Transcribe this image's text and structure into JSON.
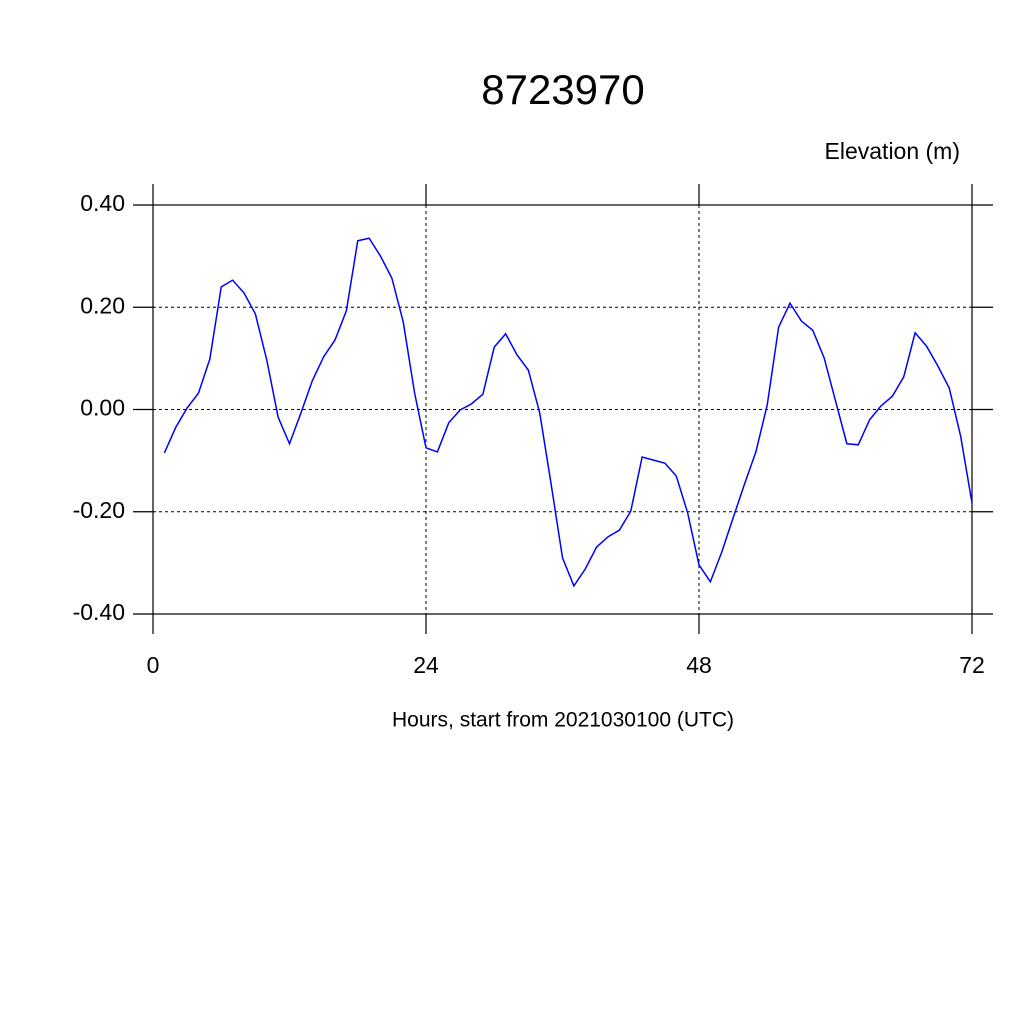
{
  "chart_data": {
    "type": "line",
    "title": "8723970",
    "y_label": "Elevation (m)",
    "x_label": "Hours, start from 2021030100 (UTC)",
    "x": [
      1,
      2,
      3,
      4,
      5,
      6,
      7,
      8,
      9,
      10,
      11,
      12,
      13,
      14,
      15,
      16,
      17,
      18,
      19,
      20,
      21,
      22,
      23,
      24,
      25,
      26,
      27,
      28,
      29,
      30,
      31,
      32,
      33,
      34,
      35,
      36,
      37,
      38,
      39,
      40,
      41,
      42,
      43,
      44,
      45,
      46,
      47,
      48,
      49,
      50,
      51,
      52,
      53,
      54,
      55,
      56,
      57,
      58,
      59,
      60,
      61,
      62,
      63,
      64,
      65,
      66,
      67,
      68,
      69,
      70,
      71,
      72
    ],
    "series": [
      {
        "name": "Elevation",
        "color": "#0000ff",
        "values": [
          -0.085,
          -0.035,
          0.003,
          0.032,
          0.099,
          0.24,
          0.253,
          0.228,
          0.187,
          0.097,
          -0.015,
          -0.067,
          -0.007,
          0.056,
          0.103,
          0.136,
          0.193,
          0.33,
          0.335,
          0.3,
          0.257,
          0.171,
          0.032,
          -0.075,
          -0.083,
          -0.026,
          -0.001,
          0.011,
          0.03,
          0.122,
          0.148,
          0.107,
          0.077,
          -0.007,
          -0.146,
          -0.29,
          -0.345,
          -0.312,
          -0.269,
          -0.249,
          -0.236,
          -0.199,
          -0.093,
          -0.099,
          -0.105,
          -0.13,
          -0.202,
          -0.304,
          -0.337,
          -0.279,
          -0.212,
          -0.146,
          -0.083,
          0.009,
          0.161,
          0.208,
          0.173,
          0.155,
          0.101,
          0.017,
          -0.067,
          -0.069,
          -0.02,
          0.007,
          0.026,
          0.064,
          0.15,
          0.124,
          0.085,
          0.042,
          -0.052,
          -0.183
        ]
      }
    ],
    "xlim": [
      0,
      72
    ],
    "xticks": [
      0,
      24,
      48,
      72
    ],
    "ylim": [
      -0.4,
      0.4
    ],
    "yticks": [
      {
        "value": -0.4,
        "label": "-0.40"
      },
      {
        "value": -0.2,
        "label": "-0.20"
      },
      {
        "value": 0,
        "label": "0.00"
      },
      {
        "value": 0.2,
        "label": "0.20"
      },
      {
        "value": 0.4,
        "label": "0.40"
      }
    ],
    "grid": true
  }
}
